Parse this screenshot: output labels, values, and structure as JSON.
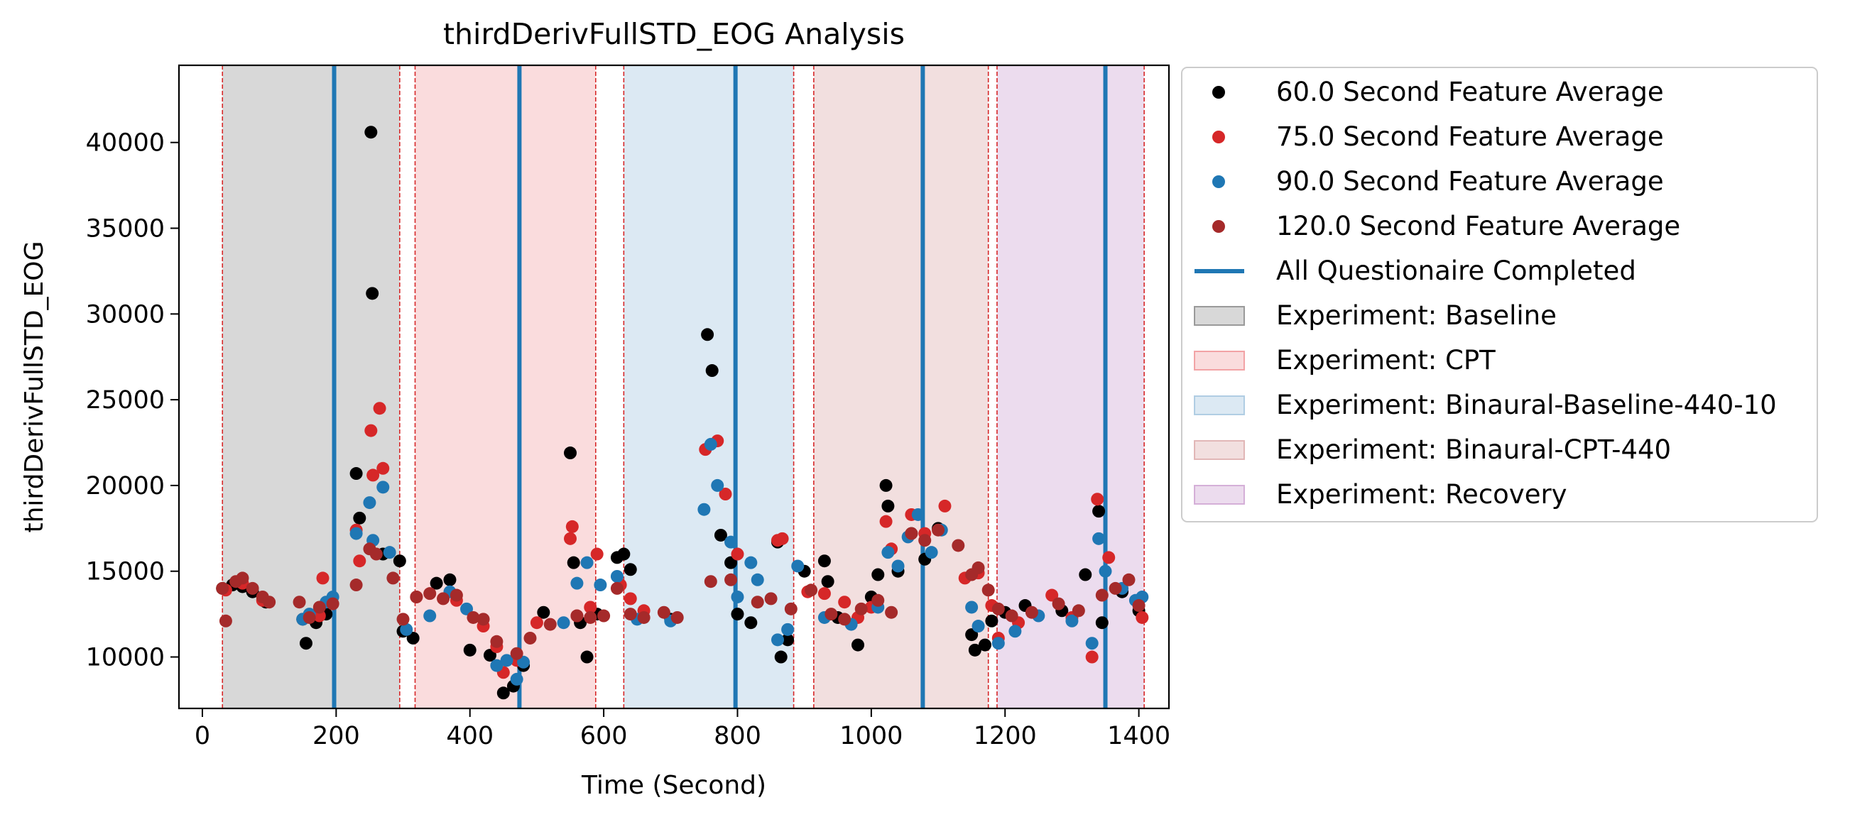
{
  "chart_data": {
    "type": "scatter",
    "title": "thirdDerivFullSTD_EOG Analysis",
    "xlabel": "Time (Second)",
    "ylabel": "thirdDerivFullSTD_EOG",
    "xlim": [
      -35,
      1445
    ],
    "ylim": [
      7000,
      44500
    ],
    "x_ticks": [
      0,
      200,
      400,
      600,
      800,
      1000,
      1200,
      1400
    ],
    "y_ticks": [
      10000,
      15000,
      20000,
      25000,
      30000,
      35000,
      40000
    ],
    "grid": false,
    "legend_position": "outside-right",
    "experiments": [
      {
        "name": "Experiment: Baseline",
        "start": 30,
        "end": 295,
        "color": "#7f7f7f",
        "opacity": 0.3
      },
      {
        "name": "Experiment: CPT",
        "start": 318,
        "end": 588,
        "color": "#ef8b8e",
        "opacity": 0.3
      },
      {
        "name": "Experiment: Binaural-Baseline-440-10",
        "start": 630,
        "end": 884,
        "color": "#9cc0dc",
        "opacity": 0.35
      },
      {
        "name": "Experiment: Binaural-CPT-440",
        "start": 914,
        "end": 1175,
        "color": "#d9a4a4",
        "opacity": 0.35
      },
      {
        "name": "Experiment: Recovery",
        "start": 1188,
        "end": 1408,
        "color": "#c99bcd",
        "opacity": 0.35
      }
    ],
    "questionnaire": {
      "name": "All Questionaire Completed",
      "color": "#1f77b4",
      "x": [
        197,
        474,
        797,
        1077,
        1350
      ]
    },
    "series": [
      {
        "name": "60.0 Second Feature Average",
        "color": "#000000",
        "points": [
          [
            30,
            14000
          ],
          [
            45,
            14200
          ],
          [
            60,
            14100
          ],
          [
            75,
            13800
          ],
          [
            95,
            13200
          ],
          [
            150,
            12200
          ],
          [
            155,
            10800
          ],
          [
            170,
            12000
          ],
          [
            185,
            12500
          ],
          [
            230,
            20700
          ],
          [
            235,
            18100
          ],
          [
            252,
            40600
          ],
          [
            254,
            31200
          ],
          [
            270,
            16000
          ],
          [
            295,
            15600
          ],
          [
            300,
            11500
          ],
          [
            315,
            11100
          ],
          [
            350,
            14300
          ],
          [
            370,
            14500
          ],
          [
            400,
            10400
          ],
          [
            430,
            10100
          ],
          [
            450,
            7900
          ],
          [
            465,
            8300
          ],
          [
            480,
            9500
          ],
          [
            510,
            12600
          ],
          [
            550,
            21900
          ],
          [
            555,
            15500
          ],
          [
            565,
            12000
          ],
          [
            575,
            10000
          ],
          [
            590,
            12500
          ],
          [
            620,
            15800
          ],
          [
            630,
            16000
          ],
          [
            640,
            15100
          ],
          [
            700,
            12200
          ],
          [
            755,
            28800
          ],
          [
            762,
            26700
          ],
          [
            775,
            17100
          ],
          [
            790,
            15500
          ],
          [
            800,
            12500
          ],
          [
            820,
            12000
          ],
          [
            860,
            16700
          ],
          [
            865,
            10000
          ],
          [
            875,
            11000
          ],
          [
            900,
            15000
          ],
          [
            930,
            15600
          ],
          [
            935,
            14400
          ],
          [
            950,
            12300
          ],
          [
            980,
            10700
          ],
          [
            1000,
            13500
          ],
          [
            1010,
            14800
          ],
          [
            1022,
            20000
          ],
          [
            1025,
            18800
          ],
          [
            1040,
            15000
          ],
          [
            1060,
            17200
          ],
          [
            1080,
            15700
          ],
          [
            1100,
            17500
          ],
          [
            1150,
            11300
          ],
          [
            1155,
            10400
          ],
          [
            1170,
            10700
          ],
          [
            1180,
            12100
          ],
          [
            1200,
            12600
          ],
          [
            1230,
            13000
          ],
          [
            1285,
            12700
          ],
          [
            1320,
            14800
          ],
          [
            1340,
            18500
          ],
          [
            1345,
            12000
          ],
          [
            1375,
            13800
          ],
          [
            1400,
            12700
          ]
        ]
      },
      {
        "name": "75.0 Second Feature Average",
        "color": "#d62728",
        "points": [
          [
            35,
            13900
          ],
          [
            60,
            14300
          ],
          [
            90,
            13300
          ],
          [
            175,
            12400
          ],
          [
            180,
            14600
          ],
          [
            230,
            17400
          ],
          [
            235,
            15600
          ],
          [
            252,
            23200
          ],
          [
            255,
            20600
          ],
          [
            265,
            24500
          ],
          [
            270,
            21000
          ],
          [
            320,
            13500
          ],
          [
            380,
            13300
          ],
          [
            420,
            11800
          ],
          [
            440,
            10600
          ],
          [
            450,
            9100
          ],
          [
            470,
            9800
          ],
          [
            500,
            12000
          ],
          [
            550,
            16900
          ],
          [
            553,
            17600
          ],
          [
            560,
            12400
          ],
          [
            580,
            12900
          ],
          [
            590,
            16000
          ],
          [
            625,
            14200
          ],
          [
            640,
            13400
          ],
          [
            660,
            12700
          ],
          [
            752,
            22100
          ],
          [
            770,
            22600
          ],
          [
            782,
            19500
          ],
          [
            800,
            16000
          ],
          [
            860,
            16800
          ],
          [
            867,
            16900
          ],
          [
            905,
            13800
          ],
          [
            930,
            13700
          ],
          [
            960,
            13200
          ],
          [
            980,
            12300
          ],
          [
            1000,
            12900
          ],
          [
            1022,
            17900
          ],
          [
            1030,
            16300
          ],
          [
            1060,
            18300
          ],
          [
            1080,
            17200
          ],
          [
            1110,
            18800
          ],
          [
            1140,
            14600
          ],
          [
            1160,
            14900
          ],
          [
            1180,
            13000
          ],
          [
            1190,
            11100
          ],
          [
            1220,
            12000
          ],
          [
            1270,
            13600
          ],
          [
            1300,
            12300
          ],
          [
            1330,
            10000
          ],
          [
            1338,
            19200
          ],
          [
            1355,
            15800
          ],
          [
            1405,
            12300
          ]
        ]
      },
      {
        "name": "90.0 Second Feature Average",
        "color": "#1f77b4",
        "points": [
          [
            150,
            12200
          ],
          [
            160,
            12500
          ],
          [
            185,
            13200
          ],
          [
            195,
            13500
          ],
          [
            230,
            17200
          ],
          [
            250,
            19000
          ],
          [
            255,
            16800
          ],
          [
            270,
            19900
          ],
          [
            280,
            16100
          ],
          [
            305,
            11600
          ],
          [
            340,
            12400
          ],
          [
            370,
            13800
          ],
          [
            395,
            12800
          ],
          [
            440,
            9500
          ],
          [
            455,
            9800
          ],
          [
            470,
            8700
          ],
          [
            480,
            9700
          ],
          [
            540,
            12000
          ],
          [
            560,
            14300
          ],
          [
            575,
            15500
          ],
          [
            595,
            14200
          ],
          [
            620,
            14700
          ],
          [
            650,
            12200
          ],
          [
            700,
            12100
          ],
          [
            750,
            18600
          ],
          [
            760,
            22400
          ],
          [
            770,
            20000
          ],
          [
            790,
            16700
          ],
          [
            800,
            13500
          ],
          [
            820,
            15500
          ],
          [
            830,
            14500
          ],
          [
            860,
            11000
          ],
          [
            875,
            11600
          ],
          [
            890,
            15300
          ],
          [
            930,
            12300
          ],
          [
            970,
            11900
          ],
          [
            1010,
            12900
          ],
          [
            1025,
            16100
          ],
          [
            1040,
            15300
          ],
          [
            1055,
            17000
          ],
          [
            1070,
            18300
          ],
          [
            1090,
            16100
          ],
          [
            1105,
            17400
          ],
          [
            1150,
            12900
          ],
          [
            1160,
            11800
          ],
          [
            1190,
            10800
          ],
          [
            1215,
            11500
          ],
          [
            1250,
            12400
          ],
          [
            1300,
            12100
          ],
          [
            1330,
            10800
          ],
          [
            1340,
            16900
          ],
          [
            1350,
            15000
          ],
          [
            1375,
            14000
          ],
          [
            1395,
            13300
          ],
          [
            1405,
            13500
          ]
        ]
      },
      {
        "name": "120.0 Second Feature Average",
        "color": "#a52a2a",
        "points": [
          [
            30,
            14000
          ],
          [
            35,
            12100
          ],
          [
            50,
            14400
          ],
          [
            60,
            14600
          ],
          [
            75,
            14000
          ],
          [
            90,
            13500
          ],
          [
            100,
            13200
          ],
          [
            145,
            13200
          ],
          [
            160,
            12300
          ],
          [
            175,
            12900
          ],
          [
            195,
            13100
          ],
          [
            230,
            14200
          ],
          [
            250,
            16300
          ],
          [
            260,
            16000
          ],
          [
            285,
            14600
          ],
          [
            300,
            12200
          ],
          [
            320,
            13500
          ],
          [
            340,
            13700
          ],
          [
            360,
            13400
          ],
          [
            380,
            13600
          ],
          [
            405,
            12300
          ],
          [
            420,
            12200
          ],
          [
            440,
            10900
          ],
          [
            470,
            10200
          ],
          [
            490,
            11100
          ],
          [
            520,
            11900
          ],
          [
            560,
            12400
          ],
          [
            580,
            12300
          ],
          [
            600,
            12400
          ],
          [
            620,
            14000
          ],
          [
            640,
            12500
          ],
          [
            660,
            12300
          ],
          [
            690,
            12600
          ],
          [
            710,
            12300
          ],
          [
            760,
            14400
          ],
          [
            790,
            14500
          ],
          [
            830,
            13200
          ],
          [
            850,
            13400
          ],
          [
            880,
            12800
          ],
          [
            910,
            13900
          ],
          [
            940,
            12500
          ],
          [
            960,
            12200
          ],
          [
            985,
            12800
          ],
          [
            1010,
            13300
          ],
          [
            1030,
            12600
          ],
          [
            1060,
            17200
          ],
          [
            1080,
            16800
          ],
          [
            1100,
            17400
          ],
          [
            1130,
            16500
          ],
          [
            1150,
            14800
          ],
          [
            1160,
            15200
          ],
          [
            1175,
            13900
          ],
          [
            1190,
            12800
          ],
          [
            1210,
            12400
          ],
          [
            1240,
            12600
          ],
          [
            1280,
            13100
          ],
          [
            1310,
            12700
          ],
          [
            1345,
            13600
          ],
          [
            1365,
            14000
          ],
          [
            1385,
            14500
          ],
          [
            1400,
            13000
          ]
        ]
      }
    ]
  }
}
